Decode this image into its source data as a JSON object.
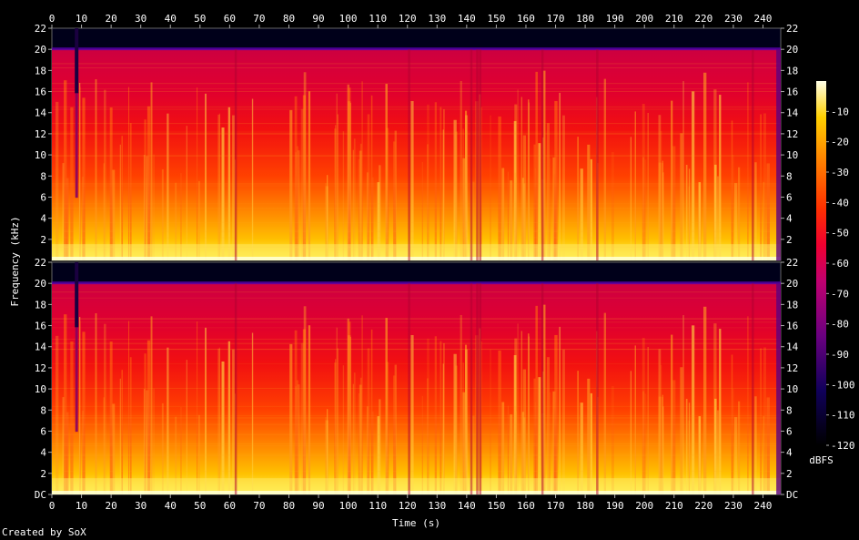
{
  "chart_data": {
    "type": "heatmap",
    "xlabel": "Time (s)",
    "ylabel": "Frequency (kHz)",
    "x_ticks": [
      0,
      10,
      20,
      30,
      40,
      50,
      60,
      70,
      80,
      90,
      100,
      110,
      120,
      130,
      140,
      150,
      160,
      170,
      180,
      190,
      200,
      210,
      220,
      230,
      240
    ],
    "xlim": [
      0,
      246
    ],
    "channels": [
      {
        "ylim": [
          0,
          22
        ],
        "y_tick_labels": [
          "2",
          "4",
          "6",
          "8",
          "10",
          "12",
          "14",
          "16",
          "18",
          "20",
          "22"
        ]
      },
      {
        "ylim": [
          0,
          22
        ],
        "y_tick_labels": [
          "DC",
          "2",
          "4",
          "6",
          "8",
          "10",
          "12",
          "14",
          "16",
          "18",
          "20",
          "22"
        ]
      }
    ],
    "colorbar": {
      "label": "dBFS",
      "ticks": [
        -10,
        -20,
        -30,
        -40,
        -50,
        -60,
        -70,
        -80,
        -90,
        -100,
        -110,
        -120
      ],
      "range": [
        -120,
        0
      ]
    },
    "content_cutoff_khz": 20,
    "colors": {
      "hot": "#ffffb0",
      "high": "#ffd800",
      "mid": "#ff2400",
      "low": "#a00070",
      "floor": "#000030"
    }
  },
  "credit": "Created by SoX"
}
